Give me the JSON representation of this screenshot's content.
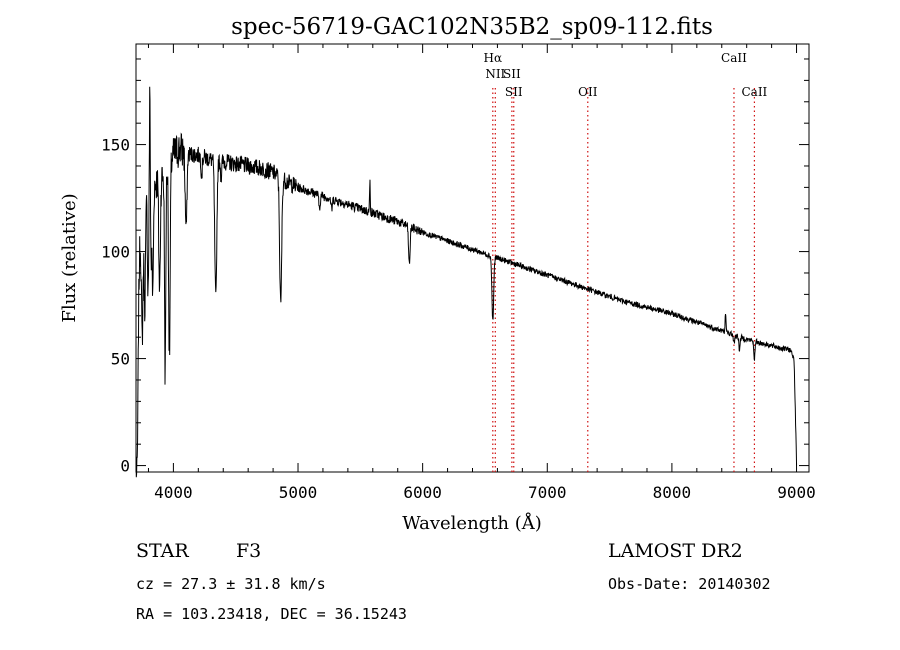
{
  "chart_data": {
    "type": "line",
    "title": "spec-56719-GAC102N35B2_sp09-112.fits",
    "xlabel": "Wavelength (Å)",
    "ylabel": "Flux (relative)",
    "xlim": [
      3700,
      9100
    ],
    "ylim": [
      -3,
      197
    ],
    "xticks": [
      4000,
      5000,
      6000,
      7000,
      8000,
      9000
    ],
    "yticks": [
      0,
      50,
      100,
      150
    ],
    "grid": false,
    "line_color": "#000000",
    "marker_color": "#d01010",
    "continuum": [
      [
        3700,
        30
      ],
      [
        3720,
        95
      ],
      [
        3760,
        120
      ],
      [
        3800,
        128
      ],
      [
        3850,
        132
      ],
      [
        3900,
        134
      ],
      [
        3950,
        138
      ],
      [
        4000,
        145
      ],
      [
        4050,
        148
      ],
      [
        4100,
        146
      ],
      [
        4200,
        145
      ],
      [
        4300,
        143
      ],
      [
        4400,
        142
      ],
      [
        4500,
        141
      ],
      [
        4600,
        140
      ],
      [
        4700,
        139
      ],
      [
        4800,
        137
      ],
      [
        4900,
        133
      ],
      [
        5000,
        130
      ],
      [
        5200,
        126
      ],
      [
        5400,
        122
      ],
      [
        5600,
        118
      ],
      [
        5800,
        114
      ],
      [
        6000,
        109
      ],
      [
        6200,
        105
      ],
      [
        6400,
        101
      ],
      [
        6600,
        97
      ],
      [
        6800,
        93
      ],
      [
        7000,
        89
      ],
      [
        7200,
        85
      ],
      [
        7400,
        81
      ],
      [
        7600,
        77
      ],
      [
        7800,
        74
      ],
      [
        8000,
        71
      ],
      [
        8200,
        67
      ],
      [
        8400,
        63
      ],
      [
        8600,
        59
      ],
      [
        8800,
        56
      ],
      [
        8950,
        54
      ],
      [
        8980,
        50
      ],
      [
        9000,
        2
      ]
    ],
    "absorption_features": [
      [
        3710,
        8,
        62
      ],
      [
        3750,
        6,
        55
      ],
      [
        3770,
        6,
        48
      ],
      [
        3797,
        5,
        45
      ],
      [
        3820,
        6,
        40
      ],
      [
        3835,
        5,
        50
      ],
      [
        3889,
        6,
        52
      ],
      [
        3934,
        5,
        95
      ],
      [
        3968,
        6,
        90
      ],
      [
        4102,
        7,
        35
      ],
      [
        4227,
        5,
        8
      ],
      [
        4340,
        8,
        65
      ],
      [
        4383,
        4,
        8
      ],
      [
        4861,
        8,
        60
      ],
      [
        5172,
        6,
        6
      ],
      [
        5270,
        5,
        5
      ],
      [
        5893,
        6,
        18
      ],
      [
        6563,
        7,
        30
      ],
      [
        8498,
        5,
        4
      ],
      [
        8542,
        5,
        6
      ],
      [
        8662,
        5,
        8
      ]
    ],
    "emission_features": [
      [
        3812,
        4,
        60
      ],
      [
        5577,
        3,
        14
      ],
      [
        8430,
        4,
        8
      ]
    ],
    "line_markers": [
      {
        "label": "Hα",
        "wavelength": 6563,
        "row": 0
      },
      {
        "label": "NII",
        "wavelength": 6583,
        "row": 1
      },
      {
        "label": "SII",
        "wavelength": 6716,
        "row": 1
      },
      {
        "label": "SII",
        "wavelength": 6731,
        "row": 2
      },
      {
        "label": "OII",
        "wavelength": 7325,
        "row": 2
      },
      {
        "label": "CaII",
        "wavelength": 8498,
        "row": 0
      },
      {
        "label": "CaII",
        "wavelength": 8662,
        "row": 2
      }
    ]
  },
  "info": {
    "class_label": "STAR",
    "subclass": "F3",
    "survey": "LAMOST DR2",
    "redshift": "cz = 27.3 ± 31.8 km/s",
    "obs_date": "Obs-Date: 20140302",
    "coords": "RA = 103.23418, DEC =  36.15243"
  }
}
